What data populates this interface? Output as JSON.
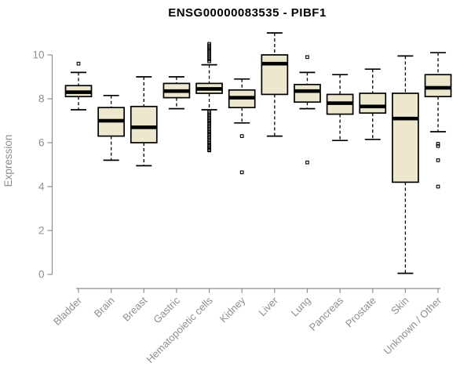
{
  "chart_data": {
    "type": "boxplot",
    "title": "ENSG00000083535 - PIBF1",
    "ylabel": "Expression",
    "xlabel": "",
    "ylim": [
      0,
      11.1
    ],
    "yticks": [
      0,
      2,
      4,
      6,
      8,
      10
    ],
    "grid": false,
    "legend": "none",
    "categories": [
      "Bladder",
      "Brain",
      "Breast",
      "Gastric",
      "Hematopoietic cells",
      "Kidney",
      "Liver",
      "Lung",
      "Pancreas",
      "Prostate",
      "Skin",
      "Unknown / Other"
    ],
    "series": [
      {
        "name": "Bladder",
        "whislo": 7.5,
        "q1": 8.1,
        "med": 8.3,
        "q3": 8.6,
        "whishi": 9.2,
        "outliers": [
          9.6
        ]
      },
      {
        "name": "Brain",
        "whislo": 5.2,
        "q1": 6.3,
        "med": 7.0,
        "q3": 7.6,
        "whishi": 8.15,
        "outliers": []
      },
      {
        "name": "Breast",
        "whislo": 4.95,
        "q1": 6.0,
        "med": 6.7,
        "q3": 7.65,
        "whishi": 9.0,
        "outliers": []
      },
      {
        "name": "Gastric",
        "whislo": 7.55,
        "q1": 8.05,
        "med": 8.35,
        "q3": 8.7,
        "whishi": 9.0,
        "outliers": []
      },
      {
        "name": "Hematopoietic cells",
        "whislo": 7.5,
        "q1": 8.25,
        "med": 8.45,
        "q3": 8.7,
        "whishi": 9.55,
        "outliers": [
          10.5,
          10.43,
          10.36,
          10.29,
          10.21,
          10.14,
          10.07,
          10.0,
          9.93,
          9.86,
          9.79,
          9.71,
          7.4,
          7.33,
          7.26,
          7.19,
          7.12,
          7.05,
          6.98,
          6.9,
          6.83,
          6.76,
          6.69,
          6.62,
          6.55,
          6.48,
          6.4,
          6.33,
          6.26,
          6.19,
          6.12,
          6.05,
          5.98,
          5.9,
          5.83,
          5.76,
          5.69,
          5.65
        ]
      },
      {
        "name": "Kidney",
        "whislo": 6.9,
        "q1": 7.6,
        "med": 8.05,
        "q3": 8.4,
        "whishi": 8.9,
        "outliers": [
          6.3,
          4.65
        ]
      },
      {
        "name": "Liver",
        "whislo": 6.3,
        "q1": 8.2,
        "med": 9.6,
        "q3": 10.0,
        "whishi": 11.0,
        "outliers": []
      },
      {
        "name": "Lung",
        "whislo": 7.55,
        "q1": 7.85,
        "med": 8.35,
        "q3": 8.65,
        "whishi": 9.2,
        "outliers": [
          9.9,
          5.1
        ]
      },
      {
        "name": "Pancreas",
        "whislo": 6.1,
        "q1": 7.3,
        "med": 7.8,
        "q3": 8.2,
        "whishi": 9.1,
        "outliers": []
      },
      {
        "name": "Prostate",
        "whislo": 6.15,
        "q1": 7.35,
        "med": 7.65,
        "q3": 8.25,
        "whishi": 9.35,
        "outliers": []
      },
      {
        "name": "Skin",
        "whislo": 0.05,
        "q1": 4.2,
        "med": 7.1,
        "q3": 8.25,
        "whishi": 9.95,
        "outliers": []
      },
      {
        "name": "Unknown / Other",
        "whislo": 6.5,
        "q1": 8.1,
        "med": 8.5,
        "q3": 9.1,
        "whishi": 10.1,
        "outliers": [
          5.95,
          5.85,
          5.2,
          4.0
        ]
      }
    ],
    "colors": {
      "box_fill": "#EDE7CD",
      "box_border": "#000000",
      "median": "#000000",
      "whisker": "#000000",
      "axis": "#8E8E8E",
      "tick_label": "#8E8E8E",
      "title": "#000000",
      "background": "#FFFFFF"
    }
  }
}
